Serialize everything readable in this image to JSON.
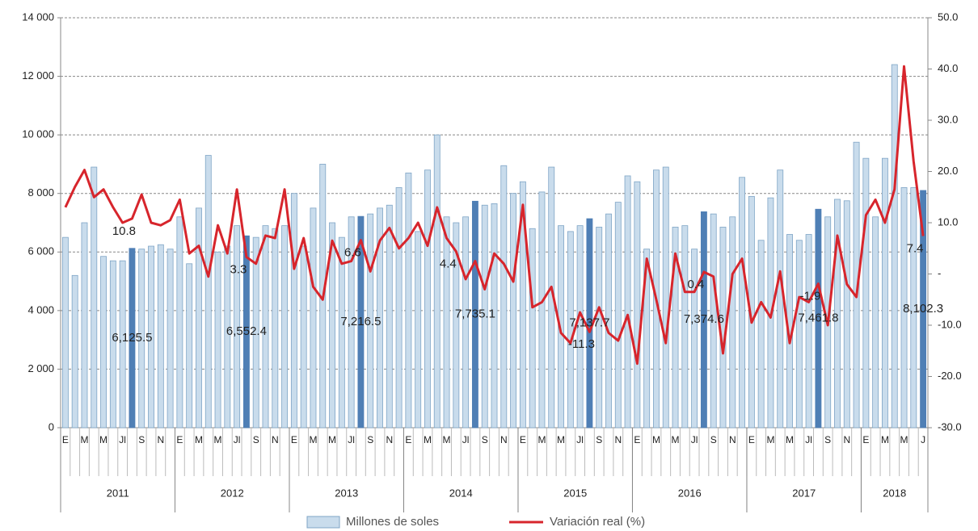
{
  "chart_data": {
    "type": "bar-line",
    "categories": [
      "E",
      null,
      "M",
      null,
      "M",
      null,
      "Jl",
      null,
      "S",
      null,
      "N",
      null,
      "E",
      null,
      "M",
      null,
      "M",
      null,
      "Jl",
      null,
      "S",
      null,
      "N",
      null,
      "E",
      null,
      "M",
      null,
      "M",
      null,
      "Jl",
      null,
      "S",
      null,
      "N",
      null,
      "E",
      null,
      "M",
      null,
      "M",
      null,
      "Jl",
      null,
      "S",
      null,
      "N",
      null,
      "E",
      null,
      "M",
      null,
      "M",
      null,
      "Jl",
      null,
      "S",
      null,
      "N",
      null,
      "E",
      null,
      "M",
      null,
      "M",
      null,
      "Jl",
      null,
      "S",
      null,
      "N",
      null,
      "E",
      null,
      "M",
      null,
      "M",
      null,
      "Jl",
      null,
      "S",
      null,
      "N",
      null,
      "E",
      null,
      "M",
      null,
      "M",
      null,
      "J"
    ],
    "years": [
      "2011",
      "2012",
      "2013",
      "2014",
      "2015",
      "2016",
      "2017",
      "2018"
    ],
    "series": [
      {
        "name": "Millones de soles",
        "color": "#c9dcec",
        "edge_color": "#7fa5c6",
        "highlight_color": "#4f7fb5",
        "values": [
          6500,
          5200,
          7000,
          8900,
          5850,
          5700,
          5700,
          6125.5,
          6100,
          6200,
          6250,
          6100,
          7200,
          5600,
          7500,
          9300,
          6000,
          6200,
          6900,
          6552.4,
          6500,
          6900,
          6800,
          6900,
          8000,
          6200,
          7500,
          9000,
          7000,
          6500,
          7200,
          7216.5,
          7300,
          7500,
          7600,
          8200,
          8700,
          6700,
          8800,
          10000,
          7200,
          7000,
          7200,
          7735.1,
          7600,
          7650,
          8950,
          8000,
          8400,
          6800,
          8050,
          8900,
          6900,
          6700,
          6900,
          7137.7,
          6850,
          7300,
          7700,
          8600,
          8400,
          6100,
          8800,
          8900,
          6850,
          6900,
          6100,
          7374.6,
          7300,
          6850,
          7200,
          8550,
          7900,
          6400,
          7850,
          8800,
          6600,
          6400,
          6600,
          7461.8,
          7200,
          7800,
          7750,
          9750,
          9200,
          7200,
          9200,
          12400,
          8200,
          8200,
          8102.3
        ],
        "value_labels": [
          null,
          null,
          null,
          null,
          null,
          null,
          null,
          "6,125.5",
          null,
          null,
          null,
          null,
          null,
          null,
          null,
          null,
          null,
          null,
          null,
          "6,552.4",
          null,
          null,
          null,
          null,
          null,
          null,
          null,
          null,
          null,
          null,
          null,
          "7,216.5",
          null,
          null,
          null,
          null,
          null,
          null,
          null,
          null,
          null,
          null,
          null,
          "7,735.1",
          null,
          null,
          null,
          null,
          null,
          null,
          null,
          null,
          null,
          null,
          null,
          "7,137.7",
          null,
          null,
          null,
          null,
          null,
          null,
          null,
          null,
          null,
          null,
          null,
          "7,374.6",
          null,
          null,
          null,
          null,
          null,
          null,
          null,
          null,
          null,
          null,
          null,
          "7,461.8",
          null,
          null,
          null,
          null,
          null,
          null,
          null,
          null,
          null,
          null,
          "8,102.3"
        ]
      },
      {
        "name": "Variación real (%)",
        "color": "#d7252c",
        "axis": "y2",
        "values": [
          13,
          17,
          20.3,
          15,
          16.5,
          13,
          10,
          10.8,
          15.5,
          10,
          9.5,
          10.5,
          14.5,
          4,
          5.5,
          -0.5,
          9.5,
          4,
          16.5,
          3.3,
          2,
          7.5,
          7,
          16.5,
          1,
          7,
          -2.5,
          -5,
          6.5,
          2,
          2.5,
          6.6,
          0.5,
          6.5,
          9,
          5,
          7,
          10,
          5.5,
          13,
          7,
          4.4,
          -1,
          2.5,
          -3,
          4,
          2,
          -1.5,
          13.5,
          -6.5,
          -5.5,
          -2.5,
          -11.5,
          -13.5,
          -7.5,
          -11.3,
          -6.5,
          -11.5,
          -13,
          -8,
          -17.5,
          3,
          -5,
          -13.5,
          4,
          -3.5,
          -3.5,
          0.4,
          -0.5,
          -15.5,
          0,
          3,
          -9.5,
          -5.5,
          -8.5,
          0.5,
          -13.5,
          -4.5,
          -5.5,
          -1.9,
          -10,
          7.5,
          -2,
          -4.5,
          11.5,
          14.5,
          10,
          16.5,
          40.5,
          22,
          7.4
        ],
        "value_labels": [
          null,
          null,
          null,
          null,
          null,
          null,
          null,
          "10.8",
          null,
          null,
          null,
          null,
          null,
          null,
          null,
          null,
          null,
          null,
          null,
          "3.3",
          null,
          null,
          null,
          null,
          null,
          null,
          null,
          null,
          null,
          null,
          null,
          "6.6",
          null,
          null,
          null,
          null,
          null,
          null,
          null,
          null,
          null,
          "4.4",
          null,
          null,
          null,
          null,
          null,
          null,
          null,
          null,
          null,
          null,
          null,
          null,
          null,
          "-11.3",
          null,
          null,
          null,
          null,
          null,
          null,
          null,
          null,
          null,
          null,
          null,
          "0.4",
          null,
          null,
          null,
          null,
          null,
          null,
          null,
          null,
          null,
          null,
          null,
          "-1.9",
          null,
          null,
          null,
          null,
          null,
          null,
          null,
          null,
          null,
          null,
          "7.4"
        ]
      }
    ],
    "ylim": [
      0,
      14000
    ],
    "yticks": [
      0,
      {
        "value": 2000,
        "label": "2 000"
      },
      {
        "value": 4000,
        "label": "4 000"
      },
      {
        "value": 6000,
        "label": "6 000"
      },
      {
        "value": 8000,
        "label": "8 000"
      },
      {
        "value": 10000,
        "label": "10 000"
      },
      {
        "value": 12000,
        "label": "12 000"
      },
      {
        "value": 14000,
        "label": "14 000"
      }
    ],
    "y2lim": [
      -30,
      50
    ],
    "y2ticks": [
      {
        "value": -30,
        "label": "-30.0"
      },
      {
        "value": -20,
        "label": "-20.0"
      },
      {
        "value": -10,
        "label": "-10.0"
      },
      {
        "value": 0,
        "label": "-"
      },
      {
        "value": 10,
        "label": "10.0"
      },
      {
        "value": 20,
        "label": "20.0"
      },
      {
        "value": 30,
        "label": "30.0"
      },
      {
        "value": 40,
        "label": "40.0"
      },
      {
        "value": 50,
        "label": "50.0"
      }
    ],
    "grid": true
  }
}
